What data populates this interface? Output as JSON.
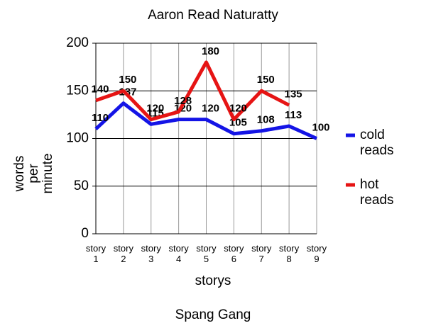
{
  "chart_data": {
    "type": "line",
    "title": "Aaron Read Naturatty",
    "subtitle": "Spang Gang",
    "x_label": "storys",
    "y_label": "words per minute",
    "categories": [
      "story 1",
      "story 2",
      "story 3",
      "story 4",
      "story 5",
      "story 6",
      "story 7",
      "story 8",
      "story 9"
    ],
    "series": [
      {
        "name": "cold reads",
        "color": "#1414e6",
        "values": [
          110,
          137,
          115,
          120,
          120,
          105,
          108,
          113,
          100
        ]
      },
      {
        "name": "hot reads",
        "color": "#e61414",
        "values": [
          140,
          150,
          120,
          128,
          180,
          120,
          150,
          135,
          null
        ]
      }
    ],
    "ylim": [
      0,
      200
    ],
    "yticks": [
      0,
      50,
      100,
      150,
      200
    ],
    "grid": true,
    "legend": "right"
  }
}
